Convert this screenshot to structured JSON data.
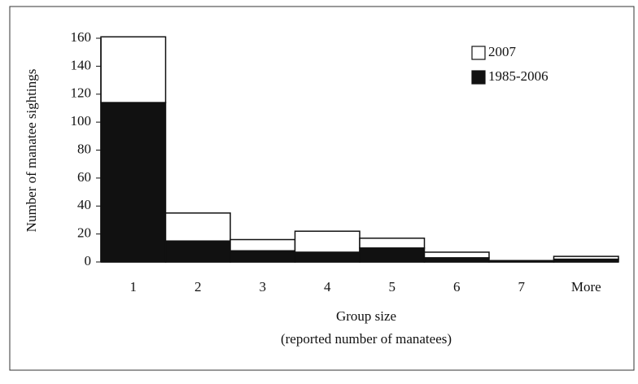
{
  "chart_data": {
    "type": "stacked_bar",
    "xlabel": [
      "Group size",
      "(reported number of manatees)"
    ],
    "ylabel": "Number of manatee sightings",
    "categories": [
      "1",
      "2",
      "3",
      "4",
      "5",
      "6",
      "7",
      "More"
    ],
    "series": [
      {
        "name": "2007",
        "color": "#ffffff",
        "values": [
          47,
          20,
          8,
          15,
          7,
          4,
          0,
          2
        ]
      },
      {
        "name": "1985-2006",
        "color": "#111111",
        "values": [
          114,
          15,
          8,
          7,
          10,
          3,
          1,
          2
        ]
      }
    ],
    "ylim": [
      0,
      160
    ],
    "yticks": [
      0,
      20,
      40,
      60,
      80,
      100,
      120,
      140,
      160
    ],
    "legend": "top-right"
  }
}
